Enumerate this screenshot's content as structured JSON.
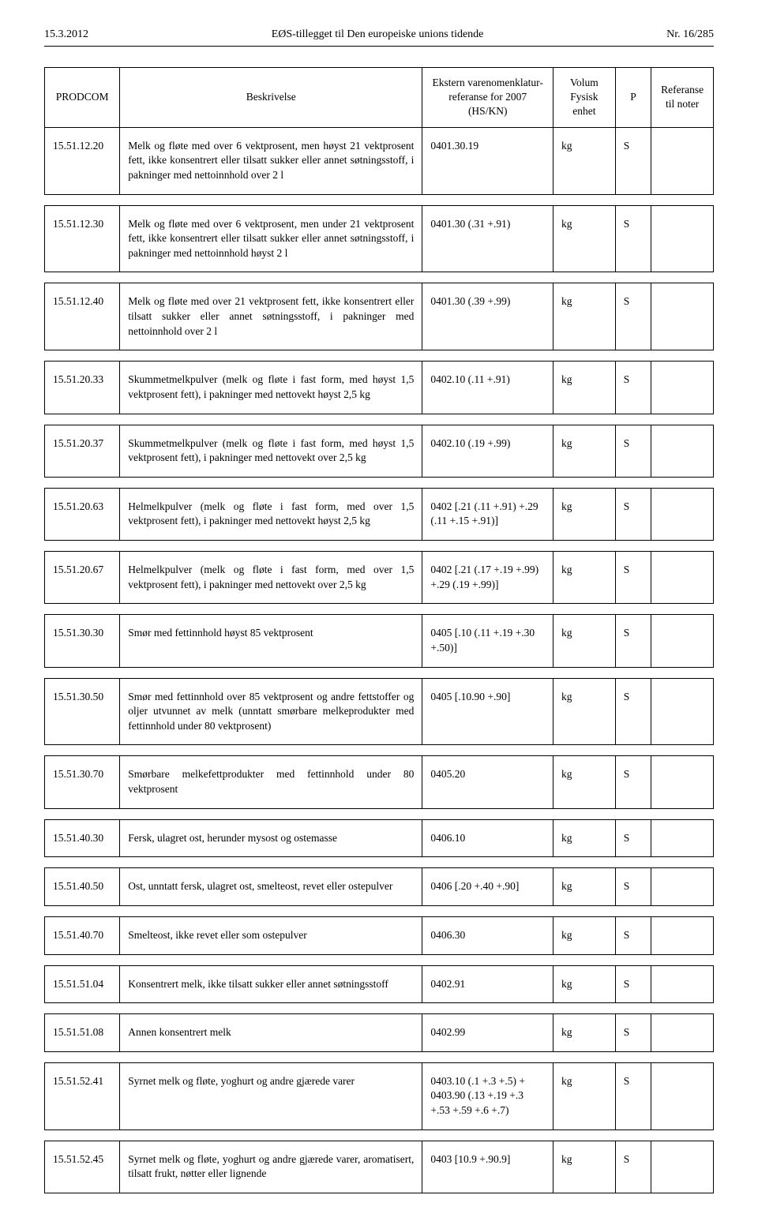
{
  "header": {
    "left": "15.3.2012",
    "center": "EØS-tillegget til Den europeiske unions tidende",
    "right": "Nr. 16/285"
  },
  "columns": {
    "c1": "PRODCOM",
    "c2": "Beskrivelse",
    "c3": "Ekstern varenomenklatur-referanse for 2007 (HS/KN)",
    "c4": "Volum Fysisk enhet",
    "c5": "P",
    "c6": "Referanse til noter"
  },
  "rows": [
    {
      "code": "15.51.12.20",
      "desc": "Melk og fløte med over 6 vektprosent, men høyst 21 vektprosent fett, ikke konsentrert eller tilsatt sukker eller annet søtningsstoff, i pakninger med nettoinnhold over 2 l",
      "ref": "0401.30.19",
      "vol": "kg",
      "p": "S",
      "note": ""
    },
    {
      "code": "15.51.12.30",
      "desc": "Melk og fløte med over 6 vektprosent, men under 21 vektprosent fett, ikke konsentrert eller tilsatt sukker eller annet søtningsstoff, i pakninger med nettoinnhold høyst 2 l",
      "ref": "0401.30 (.31 +.91)",
      "vol": "kg",
      "p": "S",
      "note": ""
    },
    {
      "code": "15.51.12.40",
      "desc": "Melk og fløte med over 21 vektprosent fett, ikke konsentrert eller tilsatt sukker eller annet søtningsstoff, i pakninger med nettoinnhold over 2 l",
      "ref": "0401.30 (.39 +.99)",
      "vol": "kg",
      "p": "S",
      "note": ""
    },
    {
      "code": "15.51.20.33",
      "desc": "Skummetmelkpulver (melk og fløte i fast form, med høyst 1,5 vektprosent fett), i pakninger med nettovekt høyst 2,5 kg",
      "ref": "0402.10 (.11 +.91)",
      "vol": "kg",
      "p": "S",
      "note": ""
    },
    {
      "code": "15.51.20.37",
      "desc": "Skummetmelkpulver (melk og fløte i fast form, med høyst 1,5 vektprosent fett), i pakninger med nettovekt over 2,5 kg",
      "ref": "0402.10 (.19 +.99)",
      "vol": "kg",
      "p": "S",
      "note": ""
    },
    {
      "code": "15.51.20.63",
      "desc": "Helmelkpulver (melk og fløte i fast form, med over 1,5 vektprosent fett), i pakninger med nettovekt høyst 2,5 kg",
      "ref": "0402 [.21 (.11 +.91) +.29 (.11 +.15 +.91)]",
      "vol": "kg",
      "p": "S",
      "note": ""
    },
    {
      "code": "15.51.20.67",
      "desc": "Helmelkpulver (melk og fløte i fast form, med over 1,5 vektprosent fett), i pakninger med nettovekt over 2,5 kg",
      "ref": "0402 [.21 (.17 +.19 +.99) +.29 (.19 +.99)]",
      "vol": "kg",
      "p": "S",
      "note": ""
    },
    {
      "code": "15.51.30.30",
      "desc": "Smør med fettinnhold høyst 85 vektprosent",
      "ref": "0405 [.10 (.11 +.19 +.30 +.50)]",
      "vol": "kg",
      "p": "S",
      "note": ""
    },
    {
      "code": "15.51.30.50",
      "desc": "Smør med fettinnhold over 85 vektprosent og andre fettstoffer og oljer utvunnet av melk (unntatt smørbare melkeprodukter med fettinnhold under 80 vektprosent)",
      "ref": "0405 [.10.90 +.90]",
      "vol": "kg",
      "p": "S",
      "note": ""
    },
    {
      "code": "15.51.30.70",
      "desc": "Smørbare melkefettprodukter med fettinnhold under 80 vektprosent",
      "ref": "0405.20",
      "vol": "kg",
      "p": "S",
      "note": ""
    },
    {
      "code": "15.51.40.30",
      "desc": "Fersk, ulagret ost, herunder mysost og ostemasse",
      "ref": "0406.10",
      "vol": "kg",
      "p": "S",
      "note": ""
    },
    {
      "code": "15.51.40.50",
      "desc": "Ost, unntatt fersk, ulagret ost, smelteost, revet eller ostepulver",
      "ref": "0406 [.20 +.40 +.90]",
      "vol": "kg",
      "p": "S",
      "note": ""
    },
    {
      "code": "15.51.40.70",
      "desc": "Smelteost, ikke revet eller som ostepulver",
      "ref": "0406.30",
      "vol": "kg",
      "p": "S",
      "note": ""
    },
    {
      "code": "15.51.51.04",
      "desc": "Konsentrert melk, ikke tilsatt sukker eller annet søtningsstoff",
      "ref": "0402.91",
      "vol": "kg",
      "p": "S",
      "note": ""
    },
    {
      "code": "15.51.51.08",
      "desc": "Annen konsentrert melk",
      "ref": "0402.99",
      "vol": "kg",
      "p": "S",
      "note": ""
    },
    {
      "code": "15.51.52.41",
      "desc": "Syrnet melk og fløte, yoghurt og andre gjærede varer",
      "ref": "0403.10 (.1 +.3 +.5) + 0403.90 (.13 +.19 +.3 +.53 +.59 +.6 +.7)",
      "vol": "kg",
      "p": "S",
      "note": ""
    },
    {
      "code": "15.51.52.45",
      "desc": "Syrnet melk og fløte, yoghurt og andre gjærede varer, aromatisert, tilsatt frukt, nøtter eller lignende",
      "ref": "0403 [10.9 +.90.9]",
      "vol": "kg",
      "p": "S",
      "note": ""
    }
  ]
}
